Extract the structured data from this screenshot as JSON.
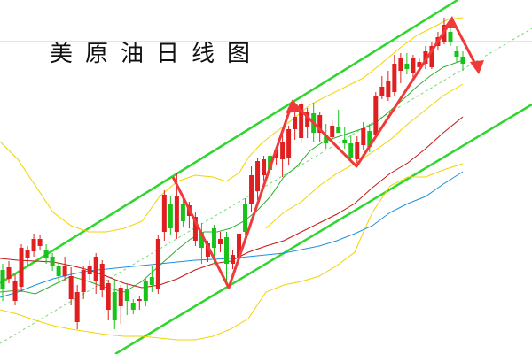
{
  "chart_data": {
    "type": "candlestick",
    "title": "美原油日线图",
    "colors": {
      "background": "#ffffff",
      "up": "#e02020",
      "down": "#19c219",
      "channel": "#2ed62e",
      "midline": "#7ad67a",
      "bollinger": "#f0d400",
      "ma_short": "#2fae2f",
      "ma_mid": "#c01818",
      "ma_long": "#1f8fe0",
      "zigzag": "#f03a3a",
      "topline": "#c8c8c8"
    },
    "candles": [
      [
        305,
        327,
        298,
        340
      ],
      [
        315,
        302,
        295,
        320
      ],
      [
        340,
        318,
        310,
        345
      ],
      [
        324,
        280,
        276,
        330
      ],
      [
        292,
        282,
        278,
        300
      ],
      [
        284,
        270,
        264,
        290
      ],
      [
        278,
        270,
        266,
        282
      ],
      [
        282,
        292,
        276,
        298
      ],
      [
        290,
        300,
        286,
        306
      ],
      [
        300,
        312,
        296,
        318
      ],
      [
        312,
        300,
        290,
        318
      ],
      [
        338,
        312,
        302,
        345
      ],
      [
        364,
        330,
        322,
        372
      ],
      [
        330,
        305,
        300,
        338
      ],
      [
        310,
        300,
        294,
        316
      ],
      [
        318,
        290,
        286,
        332
      ],
      [
        328,
        298,
        294,
        336
      ],
      [
        350,
        320,
        316,
        362
      ],
      [
        330,
        362,
        316,
        372
      ],
      [
        346,
        325,
        322,
        366
      ],
      [
        326,
        340,
        320,
        356
      ],
      [
        342,
        350,
        338,
        355
      ],
      [
        340,
        338,
        334,
        350
      ],
      [
        318,
        340,
        314,
        346
      ],
      [
        313,
        322,
        300,
        330
      ],
      [
        326,
        270,
        266,
        332
      ],
      [
        262,
        220,
        215,
        272
      ],
      [
        230,
        258,
        222,
        265
      ],
      [
        262,
        222,
        196,
        270
      ],
      [
        230,
        250,
        222,
        256
      ],
      [
        244,
        232,
        228,
        258
      ],
      [
        272,
        245,
        240,
        278
      ],
      [
        262,
        280,
        252,
        298
      ],
      [
        290,
        275,
        272,
        296
      ],
      [
        258,
        280,
        254,
        298
      ],
      [
        276,
        270,
        262,
        285
      ],
      [
        268,
        298,
        262,
        322
      ],
      [
        298,
        288,
        282,
        304
      ],
      [
        292,
        264,
        258,
        296
      ],
      [
        230,
        262,
        224,
        266
      ],
      [
        230,
        198,
        188,
        240
      ],
      [
        216,
        182,
        178,
        226
      ],
      [
        198,
        180,
        176,
        204
      ],
      [
        176,
        192,
        172,
        222
      ],
      [
        178,
        170,
        166,
        186
      ],
      [
        180,
        160,
        152,
        200
      ],
      [
        178,
        146,
        142,
        186
      ],
      [
        146,
        132,
        126,
        158
      ],
      [
        156,
        118,
        114,
        162
      ],
      [
        144,
        126,
        122,
        156
      ],
      [
        128,
        150,
        116,
        160
      ],
      [
        150,
        130,
        126,
        160
      ],
      [
        152,
        162,
        140,
        168
      ],
      [
        155,
        142,
        136,
        160
      ],
      [
        144,
        150,
        124,
        150
      ],
      [
        158,
        162,
        144,
        168
      ],
      [
        162,
        178,
        152,
        182
      ],
      [
        180,
        160,
        154,
        184
      ],
      [
        164,
        145,
        138,
        170
      ],
      [
        148,
        166,
        140,
        172
      ],
      [
        152,
        108,
        104,
        156
      ],
      [
        108,
        98,
        86,
        112
      ],
      [
        110,
        92,
        80,
        114
      ],
      [
        104,
        72,
        62,
        108
      ],
      [
        80,
        66,
        60,
        94
      ],
      [
        72,
        78,
        60,
        84
      ],
      [
        82,
        66,
        62,
        88
      ],
      [
        76,
        70,
        66,
        80
      ],
      [
        72,
        58,
        52,
        78
      ],
      [
        76,
        52,
        48,
        78
      ],
      [
        52,
        42,
        36,
        56
      ],
      [
        48,
        28,
        20,
        50
      ],
      [
        36,
        48,
        32,
        52
      ],
      [
        58,
        64,
        52,
        70
      ],
      [
        64,
        72,
        58,
        80
      ]
    ]
  }
}
